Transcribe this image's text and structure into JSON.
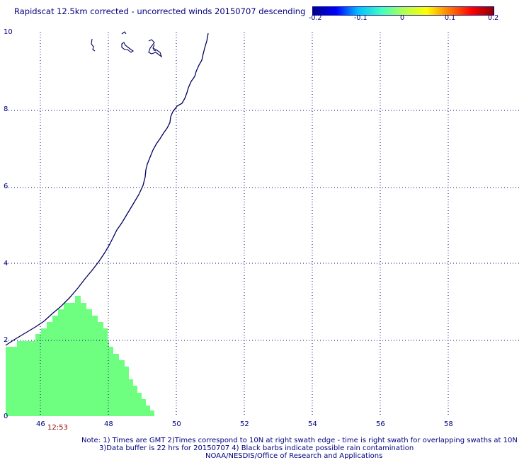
{
  "title": "Rapidscat 12.5km corrected - uncorrected winds 20150707 descending",
  "colorbar": {
    "ticks": [
      "-0.2",
      "-0.1",
      "0",
      "0.1",
      "0.2"
    ],
    "colors": [
      "#00008b",
      "#0000ff",
      "#00bfff",
      "#40ffbf",
      "#b0ff50",
      "#ffff00",
      "#ff8000",
      "#ff0000",
      "#8b0000"
    ]
  },
  "axes": {
    "x_ticks": [
      "46",
      "48",
      "50",
      "52",
      "54",
      "56",
      "58"
    ],
    "y_ticks": [
      "0",
      "2",
      "4",
      "6",
      "8",
      "10"
    ]
  },
  "swath": {
    "time": "12:53",
    "fill_color": "#6eff80"
  },
  "coastline_color": "#000060",
  "notes": {
    "line1": "Note: 1) Times are GMT 2)Times correspond to 10N at right swath edge - time is right swath for overlapping swaths at 10N",
    "line2": "3)Data buffer is 22 hrs for 20150707 4) Black barbs indicate possible rain contamination",
    "line3": "NOAA/NESDIS/Office of Research and Applications"
  }
}
